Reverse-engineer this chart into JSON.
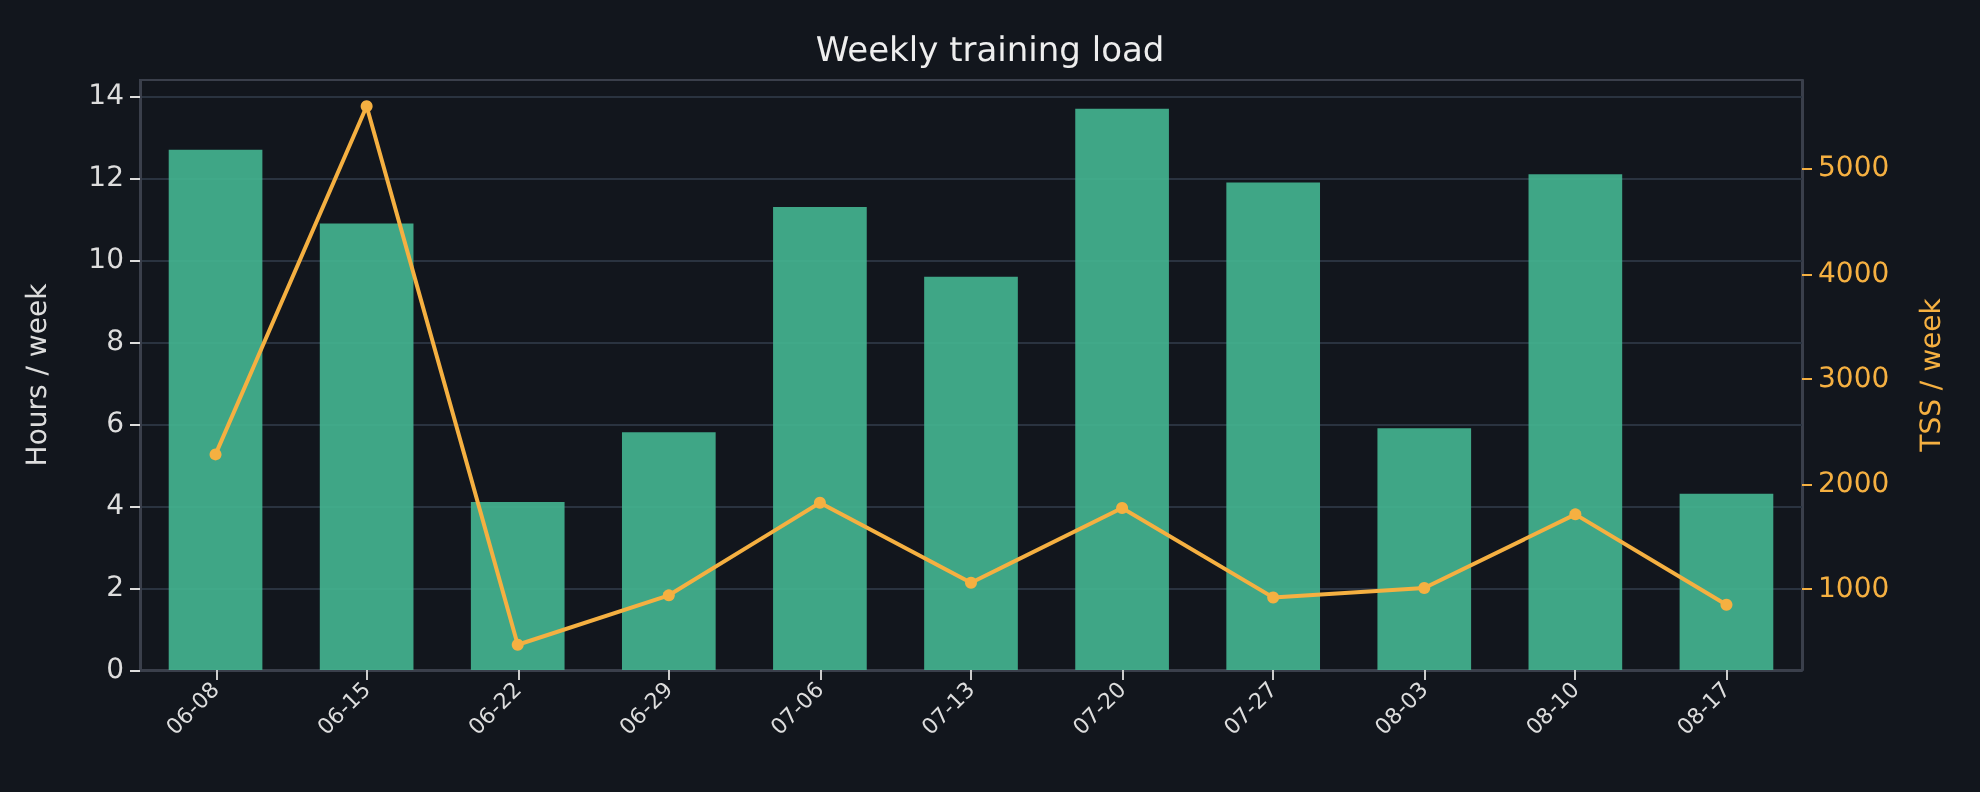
{
  "chart_data": {
    "type": "bar",
    "title": "Weekly training load",
    "ylabel": "Hours / week",
    "y2label": "TSS / week",
    "categories": [
      "06-08",
      "06-15",
      "06-22",
      "06-29",
      "07-06",
      "07-13",
      "07-20",
      "07-27",
      "08-03",
      "08-10",
      "08-17"
    ],
    "series": [
      {
        "color": "#43b38f",
        "values": [
          12.7,
          10.9,
          4.1,
          5.8,
          11.3,
          9.6,
          13.7,
          11.9,
          5.9,
          12.1,
          4.3
        ]
      },
      {
        "type": "line",
        "axis": "y2",
        "color": "#f5b041",
        "marker": "circle",
        "values": [
          2280,
          5590,
          470,
          940,
          1820,
          1060,
          1770,
          920,
          1010,
          1710,
          850
        ]
      }
    ],
    "ylim": [
      0,
      14.4
    ],
    "yticks": [
      0,
      2,
      4,
      6,
      8,
      10,
      12,
      14
    ],
    "y2lim": [
      230,
      5840
    ],
    "y2ticks": [
      1000,
      2000,
      3000,
      4000,
      5000
    ],
    "grid": "y"
  }
}
